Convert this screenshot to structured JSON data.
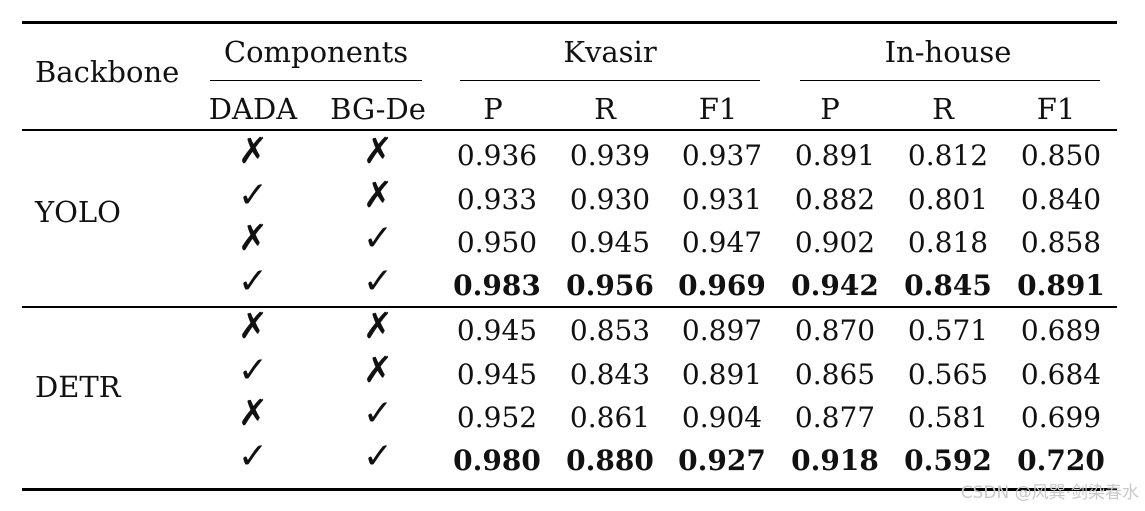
{
  "table": {
    "header": {
      "backbone": "Backbone",
      "components": "Components",
      "kvasir": "Kvasir",
      "inhouse": "In-house",
      "dada": "DADA",
      "bgde": "BG-De",
      "p1": "P",
      "r1": "R",
      "f1_1": "F1",
      "p2": "P",
      "r2": "R",
      "f1_2": "F1"
    },
    "groups": [
      {
        "backbone": "YOLO",
        "rows": [
          {
            "dada": "✗",
            "bgde": "✗",
            "values": [
              "0.936",
              "0.939",
              "0.937",
              "0.891",
              "0.812",
              "0.850"
            ],
            "bold": false
          },
          {
            "dada": "✓",
            "bgde": "✗",
            "values": [
              "0.933",
              "0.930",
              "0.931",
              "0.882",
              "0.801",
              "0.840"
            ],
            "bold": false
          },
          {
            "dada": "✗",
            "bgde": "✓",
            "values": [
              "0.950",
              "0.945",
              "0.947",
              "0.902",
              "0.818",
              "0.858"
            ],
            "bold": false
          },
          {
            "dada": "✓",
            "bgde": "✓",
            "values": [
              "0.983",
              "0.956",
              "0.969",
              "0.942",
              "0.845",
              "0.891"
            ],
            "bold": true
          }
        ]
      },
      {
        "backbone": "DETR",
        "rows": [
          {
            "dada": "✗",
            "bgde": "✗",
            "values": [
              "0.945",
              "0.853",
              "0.897",
              "0.870",
              "0.571",
              "0.689"
            ],
            "bold": false
          },
          {
            "dada": "✓",
            "bgde": "✗",
            "values": [
              "0.945",
              "0.843",
              "0.891",
              "0.865",
              "0.565",
              "0.684"
            ],
            "bold": false
          },
          {
            "dada": "✗",
            "bgde": "✓",
            "values": [
              "0.952",
              "0.861",
              "0.904",
              "0.877",
              "0.581",
              "0.699"
            ],
            "bold": false
          },
          {
            "dada": "✓",
            "bgde": "✓",
            "values": [
              "0.980",
              "0.880",
              "0.927",
              "0.918",
              "0.592",
              "0.720"
            ],
            "bold": true
          }
        ]
      }
    ]
  },
  "watermark": "CSDN @风巽·剑染春水"
}
